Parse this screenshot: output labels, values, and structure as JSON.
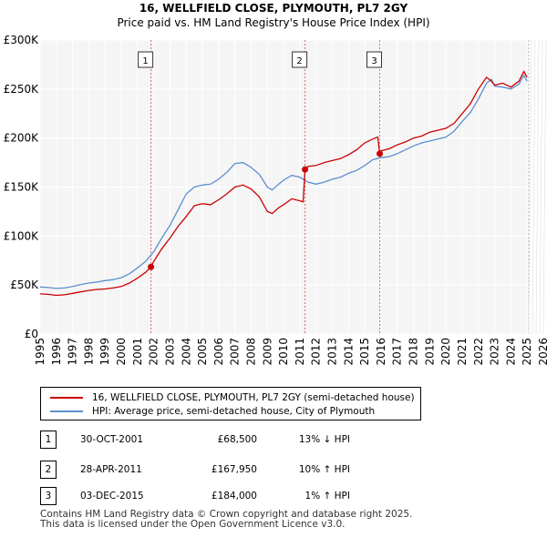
{
  "chart_data": {
    "type": "line",
    "title": "16, WELLFIELD CLOSE, PLYMOUTH, PL7 2GY",
    "subtitle": "Price paid vs. HM Land Registry's House Price Index (HPI)",
    "xlim": [
      1995,
      2026
    ],
    "ylim": [
      0,
      300000
    ],
    "y_ticks": [
      0,
      50000,
      100000,
      150000,
      200000,
      250000,
      300000
    ],
    "y_tick_labels": [
      "£0",
      "£50K",
      "£100K",
      "£150K",
      "£200K",
      "£250K",
      "£300K"
    ],
    "x_ticks": [
      1995,
      1996,
      1997,
      1998,
      1999,
      2000,
      2001,
      2002,
      2003,
      2004,
      2005,
      2006,
      2007,
      2008,
      2009,
      2010,
      2011,
      2012,
      2013,
      2014,
      2015,
      2016,
      2017,
      2018,
      2019,
      2020,
      2021,
      2022,
      2023,
      2024,
      2025,
      2026
    ],
    "x_tick_labels": [
      "1995",
      "1996",
      "1997",
      "1998",
      "1999",
      "2000",
      "2001",
      "2002",
      "2003",
      "2004",
      "2005",
      "2006",
      "2007",
      "2008",
      "2009",
      "2010",
      "2011",
      "2012",
      "2013",
      "2014",
      "2015",
      "2016",
      "2017",
      "2018",
      "2019",
      "2020",
      "2021",
      "2022",
      "2023",
      "2024",
      "2025",
      "2026"
    ],
    "grid": true,
    "future_shade_from": 2025.1,
    "series": [
      {
        "name": "16, WELLFIELD CLOSE, PLYMOUTH, PL7 2GY (semi-detached house)",
        "color": "#cc0000",
        "x": [
          1995.0,
          1995.5,
          1996.0,
          1996.5,
          1997.0,
          1997.5,
          1998.0,
          1998.5,
          1999.0,
          1999.5,
          2000.0,
          2000.5,
          2001.0,
          2001.5,
          2001.83,
          2002.0,
          2002.5,
          2003.0,
          2003.5,
          2004.0,
          2004.5,
          2005.0,
          2005.5,
          2006.0,
          2006.5,
          2007.0,
          2007.5,
          2008.0,
          2008.5,
          2009.0,
          2009.3,
          2009.7,
          2010.0,
          2010.5,
          2011.0,
          2011.2,
          2011.32,
          2011.5,
          2012.0,
          2012.5,
          2013.0,
          2013.5,
          2014.0,
          2014.5,
          2015.0,
          2015.5,
          2015.8,
          2015.92,
          2016.0,
          2016.5,
          2017.0,
          2017.5,
          2018.0,
          2018.5,
          2019.0,
          2019.5,
          2020.0,
          2020.5,
          2021.0,
          2021.5,
          2022.0,
          2022.5,
          2022.8,
          2023.0,
          2023.5,
          2024.0,
          2024.5,
          2024.8,
          2025.0
        ],
        "values": [
          41000,
          40500,
          39500,
          40000,
          41500,
          43000,
          44500,
          45500,
          46000,
          47000,
          48500,
          52000,
          57000,
          63000,
          68500,
          74000,
          87000,
          98000,
          110000,
          120000,
          131000,
          133000,
          132000,
          137000,
          143000,
          150000,
          152000,
          148000,
          140000,
          125000,
          123000,
          129000,
          132000,
          138000,
          136000,
          135000,
          167950,
          171000,
          172000,
          175000,
          177000,
          179000,
          183000,
          188000,
          195000,
          199000,
          201000,
          184000,
          187000,
          189000,
          193000,
          196000,
          200000,
          202000,
          206000,
          208000,
          210000,
          215000,
          225000,
          235000,
          250000,
          262000,
          258000,
          254000,
          256000,
          252000,
          258000,
          268000,
          262000
        ]
      },
      {
        "name": "HPI: Average price, semi-detached house, City of Plymouth",
        "color": "#5b8fcf",
        "x": [
          1995.0,
          1995.5,
          1996.0,
          1996.5,
          1997.0,
          1997.5,
          1998.0,
          1998.5,
          1999.0,
          1999.5,
          2000.0,
          2000.5,
          2001.0,
          2001.5,
          2002.0,
          2002.5,
          2003.0,
          2003.5,
          2004.0,
          2004.5,
          2005.0,
          2005.5,
          2006.0,
          2006.5,
          2007.0,
          2007.5,
          2008.0,
          2008.5,
          2009.0,
          2009.3,
          2009.7,
          2010.0,
          2010.5,
          2011.0,
          2011.5,
          2012.0,
          2012.5,
          2013.0,
          2013.5,
          2014.0,
          2014.5,
          2015.0,
          2015.5,
          2016.0,
          2016.5,
          2017.0,
          2017.5,
          2018.0,
          2018.5,
          2019.0,
          2019.5,
          2020.0,
          2020.5,
          2021.0,
          2021.5,
          2022.0,
          2022.5,
          2022.8,
          2023.0,
          2023.5,
          2024.0,
          2024.5,
          2024.8,
          2025.0
        ],
        "values": [
          48000,
          47500,
          46500,
          47000,
          48500,
          50500,
          52000,
          53000,
          54500,
          55500,
          57500,
          61500,
          67500,
          74000,
          84000,
          98000,
          111000,
          127000,
          143000,
          150000,
          152000,
          153000,
          158000,
          165000,
          174000,
          175000,
          170000,
          163000,
          150000,
          147000,
          153000,
          157000,
          162000,
          160000,
          155000,
          153000,
          155000,
          158000,
          160000,
          164000,
          167000,
          172000,
          178000,
          180000,
          181000,
          184000,
          188000,
          192000,
          195000,
          197000,
          199000,
          201000,
          207000,
          217000,
          226000,
          240000,
          256000,
          260000,
          253000,
          252000,
          250000,
          255000,
          264000,
          258000
        ]
      }
    ],
    "transactions": [
      {
        "label": "1",
        "date": "30-OCT-2001",
        "x": 2001.83,
        "price": "£68,500",
        "value": 68500,
        "hpi": "13% ↓ HPI"
      },
      {
        "label": "2",
        "date": "28-APR-2011",
        "x": 2011.32,
        "price": "£167,950",
        "value": 167950,
        "hpi": "10% ↑ HPI"
      },
      {
        "label": "3",
        "date": "03-DEC-2015",
        "x": 2015.92,
        "price": "£184,000",
        "value": 184000,
        "hpi": "1% ↑ HPI"
      }
    ]
  },
  "legend": {
    "red_label": "16, WELLFIELD CLOSE, PLYMOUTH, PL7 2GY (semi-detached house)",
    "blue_label": "HPI: Average price, semi-detached house, City of Plymouth",
    "red_color": "#cc0000",
    "blue_color": "#5b8fcf"
  },
  "footer": {
    "line1": "Contains HM Land Registry data © Crown copyright and database right 2025.",
    "line2": "This data is licensed under the Open Government Licence v3.0."
  }
}
